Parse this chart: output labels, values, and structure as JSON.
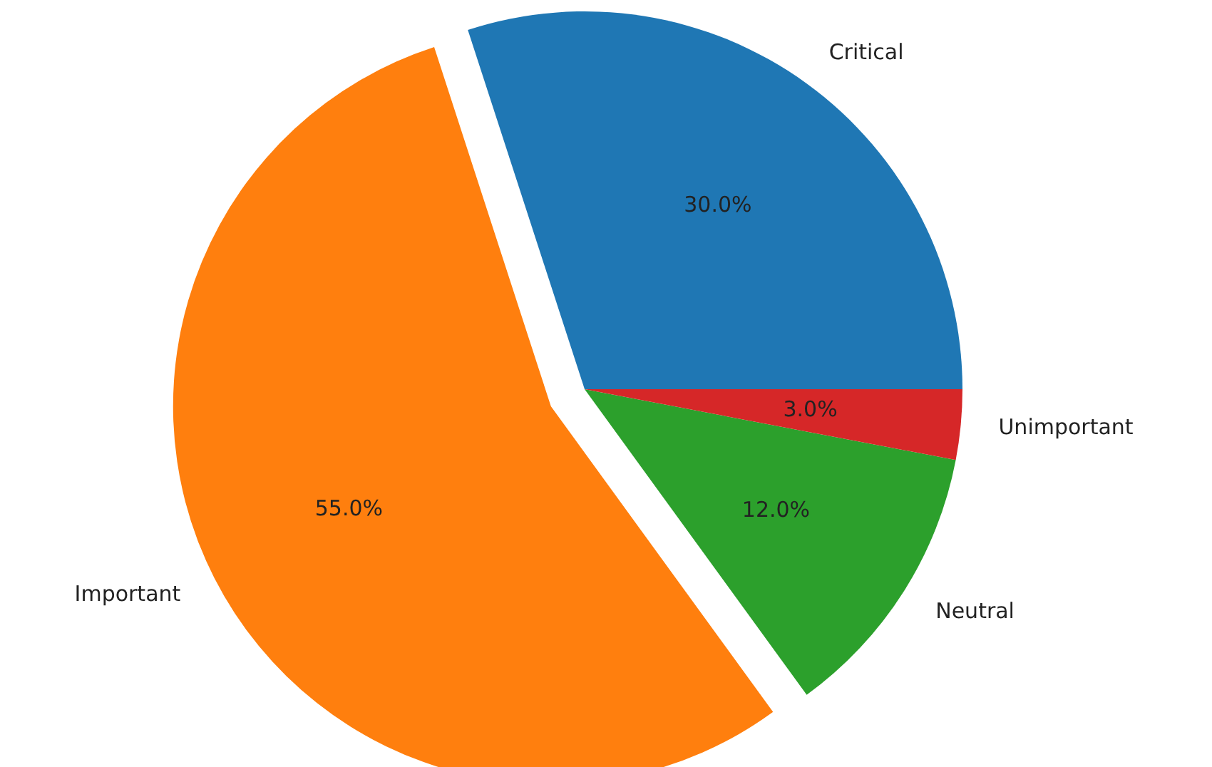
{
  "chart_data": {
    "type": "pie",
    "categories": [
      "Critical",
      "Important",
      "Neutral",
      "Unimportant"
    ],
    "values": [
      30,
      55,
      12,
      3
    ],
    "colors": [
      "#1f77b4",
      "#ff7f0e",
      "#2ca02c",
      "#d62728"
    ],
    "value_labels": [
      "30.0%",
      "55.0%",
      "12.0%",
      "3.0%"
    ]
  }
}
